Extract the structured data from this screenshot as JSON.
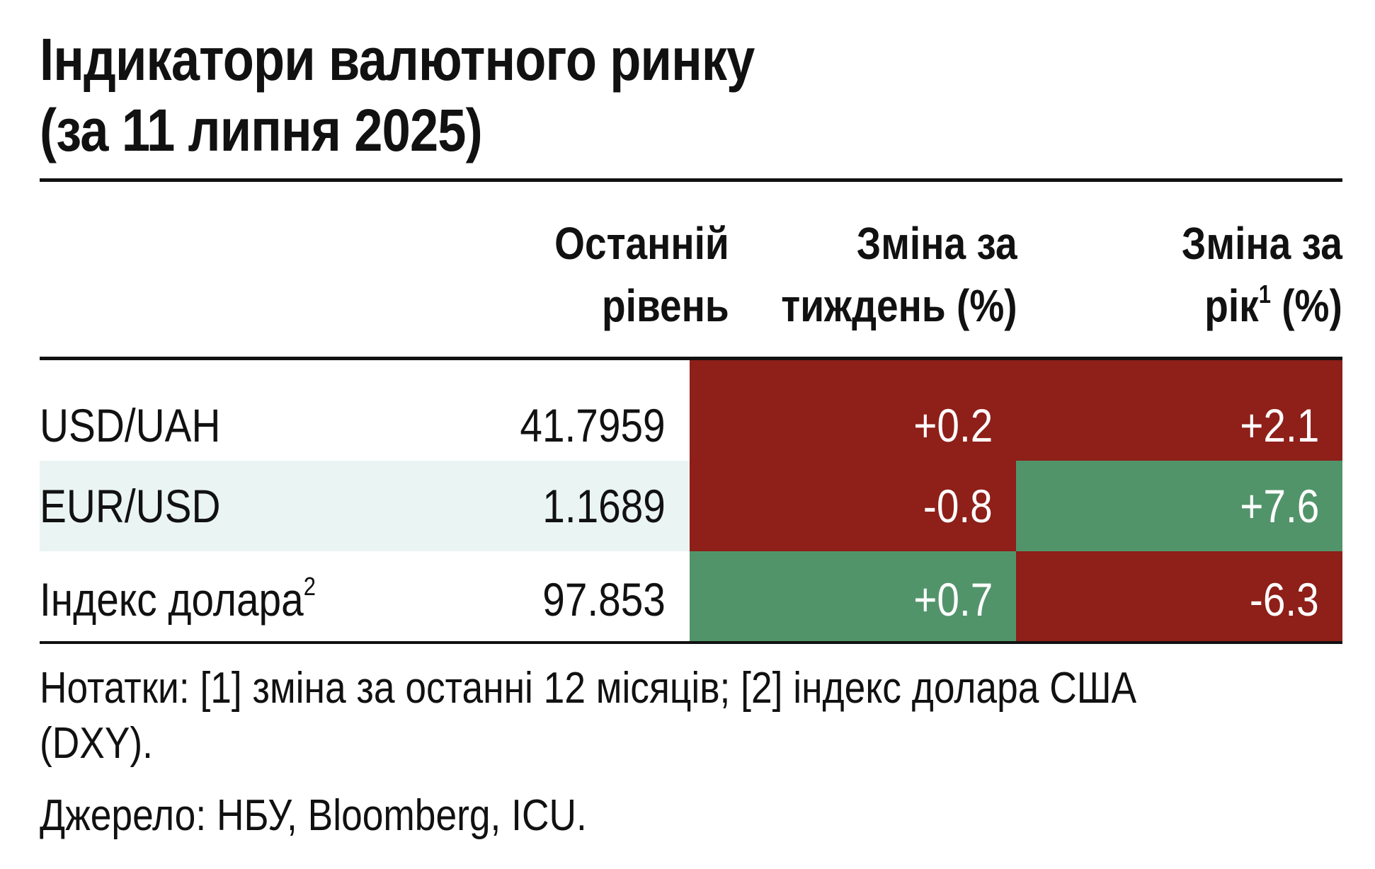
{
  "title": {
    "line1": "Індикатори валютного ринку",
    "line2": "(за 11 липня 2025)"
  },
  "columns": {
    "level": {
      "line1": "Останній",
      "line2": "рівень"
    },
    "week": {
      "line1": "Зміна за",
      "line2": "тиждень (%)"
    },
    "year": {
      "line1": "Зміна за",
      "line2_pre": "рік",
      "line2_sup": "1",
      "line2_post": " (%)"
    }
  },
  "rows": [
    {
      "name": "USD/UAH",
      "name_sup": "",
      "level": "41.7959",
      "week": "+0.2",
      "year": "+2.1",
      "band": "#ffffff"
    },
    {
      "name": "EUR/USD",
      "name_sup": "",
      "level": "1.1689",
      "week": "-0.8",
      "year": "+7.6",
      "band": "#eaf4f2"
    },
    {
      "name": "Індекс долара",
      "name_sup": "2",
      "level": "97.853",
      "week": "+0.7",
      "year": "-6.3",
      "band": "#ffffff"
    }
  ],
  "colors": {
    "positive_pressure": "#8e1f19",
    "negative_pressure": "#52946a",
    "week": [
      "#8e1f19",
      "#8e1f19",
      "#52946a"
    ],
    "year": [
      "#8e1f19",
      "#52946a",
      "#8e1f19"
    ]
  },
  "notes": "Нотатки: [1] зміна за останні 12 місяців; [2] індекс долара США (DXY).",
  "source": "Джерело: НБУ, Bloomberg, ICU."
}
